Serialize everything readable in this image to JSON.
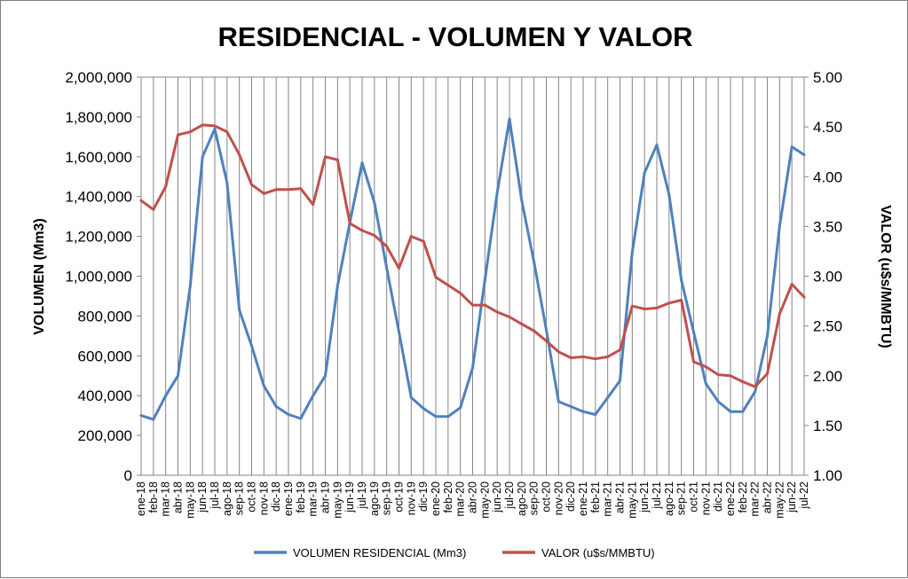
{
  "chart_data": {
    "type": "line",
    "title": "RESIDENCIAL - VOLUMEN Y VALOR",
    "ylabel_left": "VOLUMEN (Mm3)",
    "ylabel_right": "VALOR (u$s/MMBTU)",
    "ylim_left": [
      0,
      2000000
    ],
    "ylim_right": [
      1.0,
      5.0
    ],
    "yticks_left": [
      "0",
      "200,000",
      "400,000",
      "600,000",
      "800,000",
      "1,000,000",
      "1,200,000",
      "1,400,000",
      "1,600,000",
      "1,800,000",
      "2,000,000"
    ],
    "yticks_right": [
      "1.00",
      "1.50",
      "2.00",
      "2.50",
      "3.00",
      "3.50",
      "4.00",
      "4.50",
      "5.00"
    ],
    "grid": "vertical",
    "legend": "bottom",
    "categories": [
      "ene-18",
      "feb-18",
      "mar-18",
      "abr-18",
      "may-18",
      "jun-18",
      "jul-18",
      "ago-18",
      "sep-18",
      "oct-18",
      "nov-18",
      "dic-18",
      "ene-19",
      "feb-19",
      "mar-19",
      "abr-19",
      "may-19",
      "jun-19",
      "jul-19",
      "ago-19",
      "sep-19",
      "oct-19",
      "nov-19",
      "dic-19",
      "ene-20",
      "feb-20",
      "mar-20",
      "abr-20",
      "may-20",
      "jun-20",
      "jul-20",
      "ago-20",
      "sep-20",
      "oct-20",
      "nov-20",
      "dic-20",
      "ene-21",
      "feb-21",
      "mar-21",
      "abr-21",
      "may-21",
      "jun-21",
      "jul-21",
      "ago-21",
      "sep-21",
      "oct-21",
      "nov-21",
      "dic-21",
      "ene-22",
      "feb-22",
      "mar-22",
      "abr-22",
      "may-22",
      "jun-22",
      "jul-22"
    ],
    "series": [
      {
        "name": "VOLUMEN RESIDENCIAL (Mm3)",
        "axis": "left",
        "color": "#4f81bd",
        "values": [
          300000,
          280000,
          400000,
          500000,
          950000,
          1600000,
          1740000,
          1470000,
          830000,
          650000,
          450000,
          345000,
          305000,
          285000,
          400000,
          500000,
          950000,
          1270000,
          1570000,
          1370000,
          1040000,
          720000,
          390000,
          335000,
          295000,
          295000,
          340000,
          540000,
          980000,
          1420000,
          1790000,
          1380000,
          1070000,
          730000,
          370000,
          345000,
          320000,
          305000,
          390000,
          475000,
          1120000,
          1520000,
          1660000,
          1410000,
          980000,
          720000,
          460000,
          370000,
          320000,
          320000,
          420000,
          700000,
          1250000,
          1650000,
          1610000
        ]
      },
      {
        "name": "VALOR (u$s/MMBTU)",
        "axis": "right",
        "color": "#c0504d",
        "values": [
          3.76,
          3.67,
          3.9,
          4.42,
          4.45,
          4.52,
          4.51,
          4.45,
          4.22,
          3.92,
          3.83,
          3.87,
          3.87,
          3.88,
          3.72,
          4.2,
          4.17,
          3.53,
          3.46,
          3.41,
          3.3,
          3.08,
          3.4,
          3.35,
          2.99,
          2.91,
          2.83,
          2.71,
          2.71,
          2.64,
          2.59,
          2.52,
          2.45,
          2.35,
          2.24,
          2.18,
          2.19,
          2.17,
          2.19,
          2.26,
          2.7,
          2.67,
          2.68,
          2.73,
          2.76,
          2.14,
          2.09,
          2.01,
          2.0,
          1.94,
          1.89,
          2.02,
          2.62,
          2.92,
          2.79
        ]
      }
    ]
  }
}
